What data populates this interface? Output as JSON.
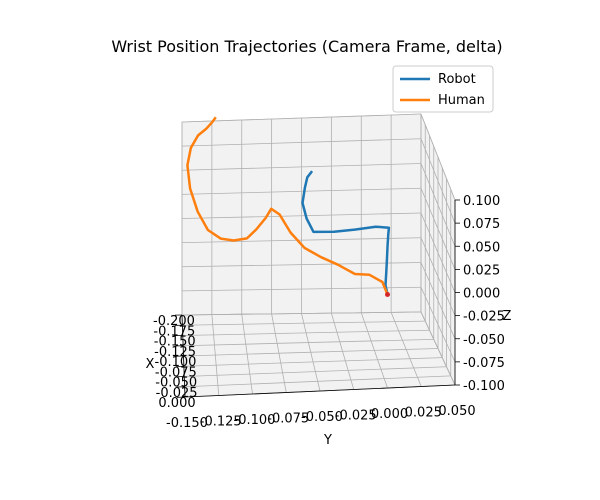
{
  "chart_data": {
    "type": "line",
    "projection": "3d",
    "title": "Wrist Position Trajectories (Camera Frame, delta)",
    "xlabel": "X",
    "ylabel": "Y",
    "zlabel": "Z",
    "xlim": [
      -0.2,
      0.0
    ],
    "ylim": [
      -0.15,
      0.05
    ],
    "zlim": [
      -0.1,
      0.1
    ],
    "xticks": [
      "-0.200",
      "-0.175",
      "-0.150",
      "-0.125",
      "-0.100",
      "-0.075",
      "-0.050",
      "-0.025",
      "0.000"
    ],
    "yticks": [
      "-0.150",
      "-0.125",
      "-0.100",
      "-0.075",
      "-0.050",
      "-0.025",
      "0.000",
      "0.025",
      "0.050"
    ],
    "zticks": [
      "0.100",
      "0.075",
      "0.050",
      "0.025",
      "0.000",
      "-0.025",
      "-0.050",
      "-0.075",
      "-0.100"
    ],
    "grid": true,
    "legend_position": "top-right",
    "series": [
      {
        "name": "Robot",
        "color": "#1f77b4",
        "x": [
          0.0,
          -0.005,
          -0.01,
          -0.015,
          -0.02,
          -0.025,
          -0.03,
          -0.04,
          -0.05,
          -0.06,
          -0.07,
          -0.075,
          -0.078,
          -0.08,
          -0.082,
          -0.085
        ],
        "y": [
          0.0,
          -0.001,
          0.0,
          0.001,
          0.002,
          0.003,
          0.004,
          -0.005,
          -0.02,
          -0.035,
          -0.05,
          -0.055,
          -0.058,
          -0.056,
          -0.054,
          -0.05
        ],
        "z": [
          0.0,
          0.008,
          0.018,
          0.03,
          0.042,
          0.052,
          0.058,
          0.055,
          0.048,
          0.042,
          0.038,
          0.05,
          0.065,
          0.08,
          0.09,
          0.095
        ]
      },
      {
        "name": "Human",
        "color": "#ff7f0e",
        "x": [
          0.0,
          -0.008,
          -0.015,
          -0.025,
          -0.035,
          -0.045,
          -0.055,
          -0.065,
          -0.075,
          -0.082,
          -0.09,
          -0.098,
          -0.105,
          -0.115,
          -0.125,
          -0.135,
          -0.145,
          -0.155,
          -0.165,
          -0.172,
          -0.178,
          -0.182,
          -0.186,
          -0.19
        ],
        "y": [
          0.0,
          -0.003,
          -0.012,
          -0.022,
          -0.034,
          -0.046,
          -0.058,
          -0.068,
          -0.076,
          -0.082,
          -0.086,
          -0.093,
          -0.1,
          -0.11,
          -0.12,
          -0.13,
          -0.138,
          -0.144,
          -0.146,
          -0.143,
          -0.137,
          -0.13,
          -0.125,
          -0.122
        ],
        "z": [
          0.0,
          0.01,
          0.015,
          0.012,
          0.018,
          0.022,
          0.028,
          0.04,
          0.055,
          0.058,
          0.045,
          0.03,
          0.018,
          0.012,
          0.01,
          0.015,
          0.03,
          0.05,
          0.07,
          0.085,
          0.095,
          0.1,
          0.105,
          0.108
        ]
      }
    ]
  }
}
